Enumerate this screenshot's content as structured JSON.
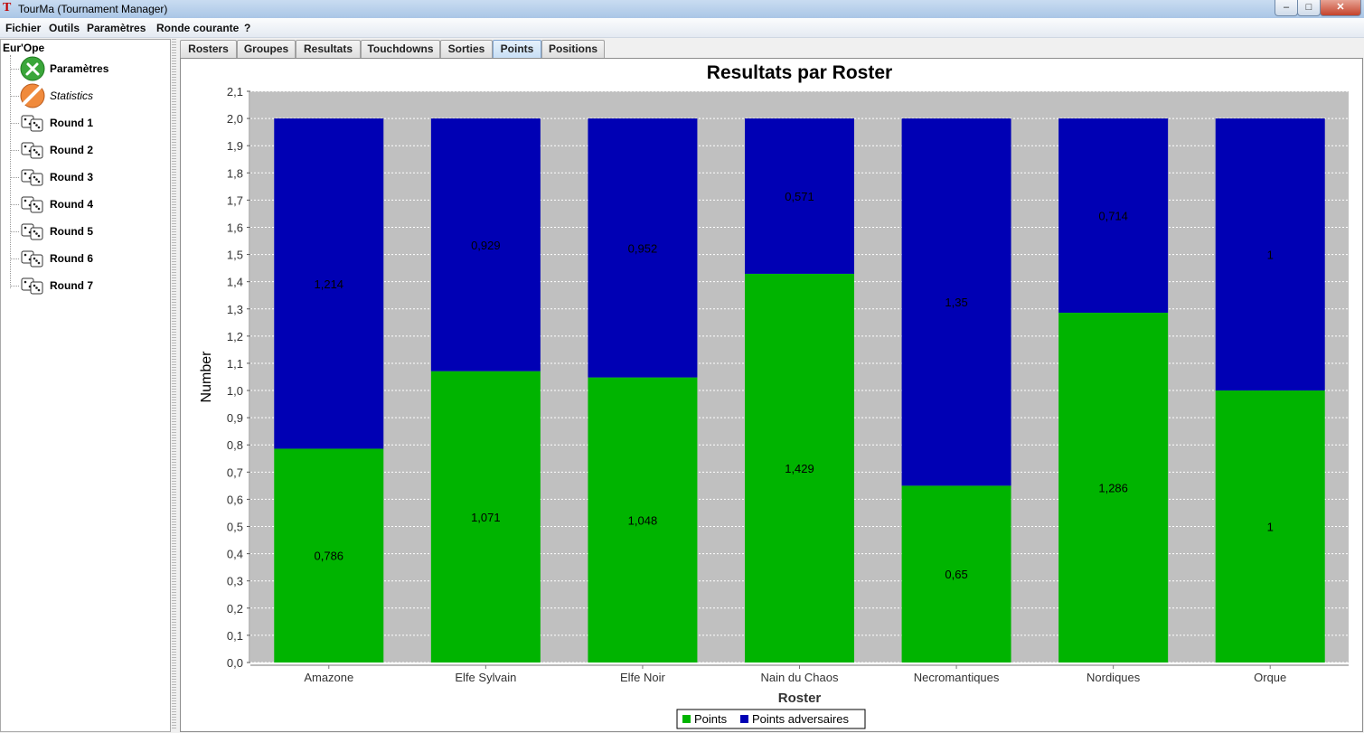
{
  "window": {
    "title": "TourMa (Tournament Manager)",
    "controls": {
      "minimize": "–",
      "maximize": "□",
      "close": "✕"
    }
  },
  "menu": [
    "Fichier",
    "Outils",
    "Paramètres",
    "Ronde courante",
    "?"
  ],
  "tree": {
    "root": "Eur'Ope",
    "items": [
      {
        "label": "Paramètres",
        "icon": "tools-icon",
        "italic": false
      },
      {
        "label": "Statistics",
        "icon": "statistics-icon",
        "italic": true
      },
      {
        "label": "Round 1",
        "icon": "dice-icon",
        "italic": false
      },
      {
        "label": "Round 2",
        "icon": "dice-icon",
        "italic": false
      },
      {
        "label": "Round 3",
        "icon": "dice-icon",
        "italic": false
      },
      {
        "label": "Round 4",
        "icon": "dice-icon",
        "italic": false
      },
      {
        "label": "Round 5",
        "icon": "dice-icon",
        "italic": false
      },
      {
        "label": "Round 6",
        "icon": "dice-icon",
        "italic": false
      },
      {
        "label": "Round 7",
        "icon": "dice-icon",
        "italic": false
      }
    ]
  },
  "tabs": [
    {
      "label": "Rosters",
      "active": false
    },
    {
      "label": "Groupes",
      "active": false
    },
    {
      "label": "Resultats",
      "active": false
    },
    {
      "label": "Touchdowns",
      "active": false
    },
    {
      "label": "Sorties",
      "active": false
    },
    {
      "label": "Points",
      "active": true
    },
    {
      "label": "Positions",
      "active": false
    }
  ],
  "chart_data": {
    "type": "bar",
    "stacked": true,
    "title": "Resultats par Roster",
    "xlabel": "Roster",
    "ylabel": "Number",
    "ylim": [
      0,
      2.1
    ],
    "y_ticks": [
      "0,0",
      "0,1",
      "0,2",
      "0,3",
      "0,4",
      "0,5",
      "0,6",
      "0,7",
      "0,8",
      "0,9",
      "1,0",
      "1,1",
      "1,2",
      "1,3",
      "1,4",
      "1,5",
      "1,6",
      "1,7",
      "1,8",
      "1,9",
      "2,0",
      "2,1"
    ],
    "categories": [
      "Amazone",
      "Elfe Sylvain",
      "Elfe Noir",
      "Nain du Chaos",
      "Necromantiques",
      "Nordiques",
      "Orque"
    ],
    "series": [
      {
        "name": "Points",
        "color": "#00b400",
        "values": [
          0.786,
          1.071,
          1.048,
          1.429,
          0.65,
          1.286,
          1
        ],
        "labels": [
          "0,786",
          "1,071",
          "1,048",
          "1,429",
          "0,65",
          "1,286",
          "1"
        ]
      },
      {
        "name": "Points adversaires",
        "color": "#0000b4",
        "values": [
          1.214,
          0.929,
          0.952,
          0.571,
          1.35,
          0.714,
          1
        ],
        "labels": [
          "1,214",
          "0,929",
          "0,952",
          "0,571",
          "1,35",
          "0,714",
          "1"
        ]
      }
    ],
    "grid": true,
    "plot_background": "#c0c0c0",
    "legend_position": "bottom"
  }
}
